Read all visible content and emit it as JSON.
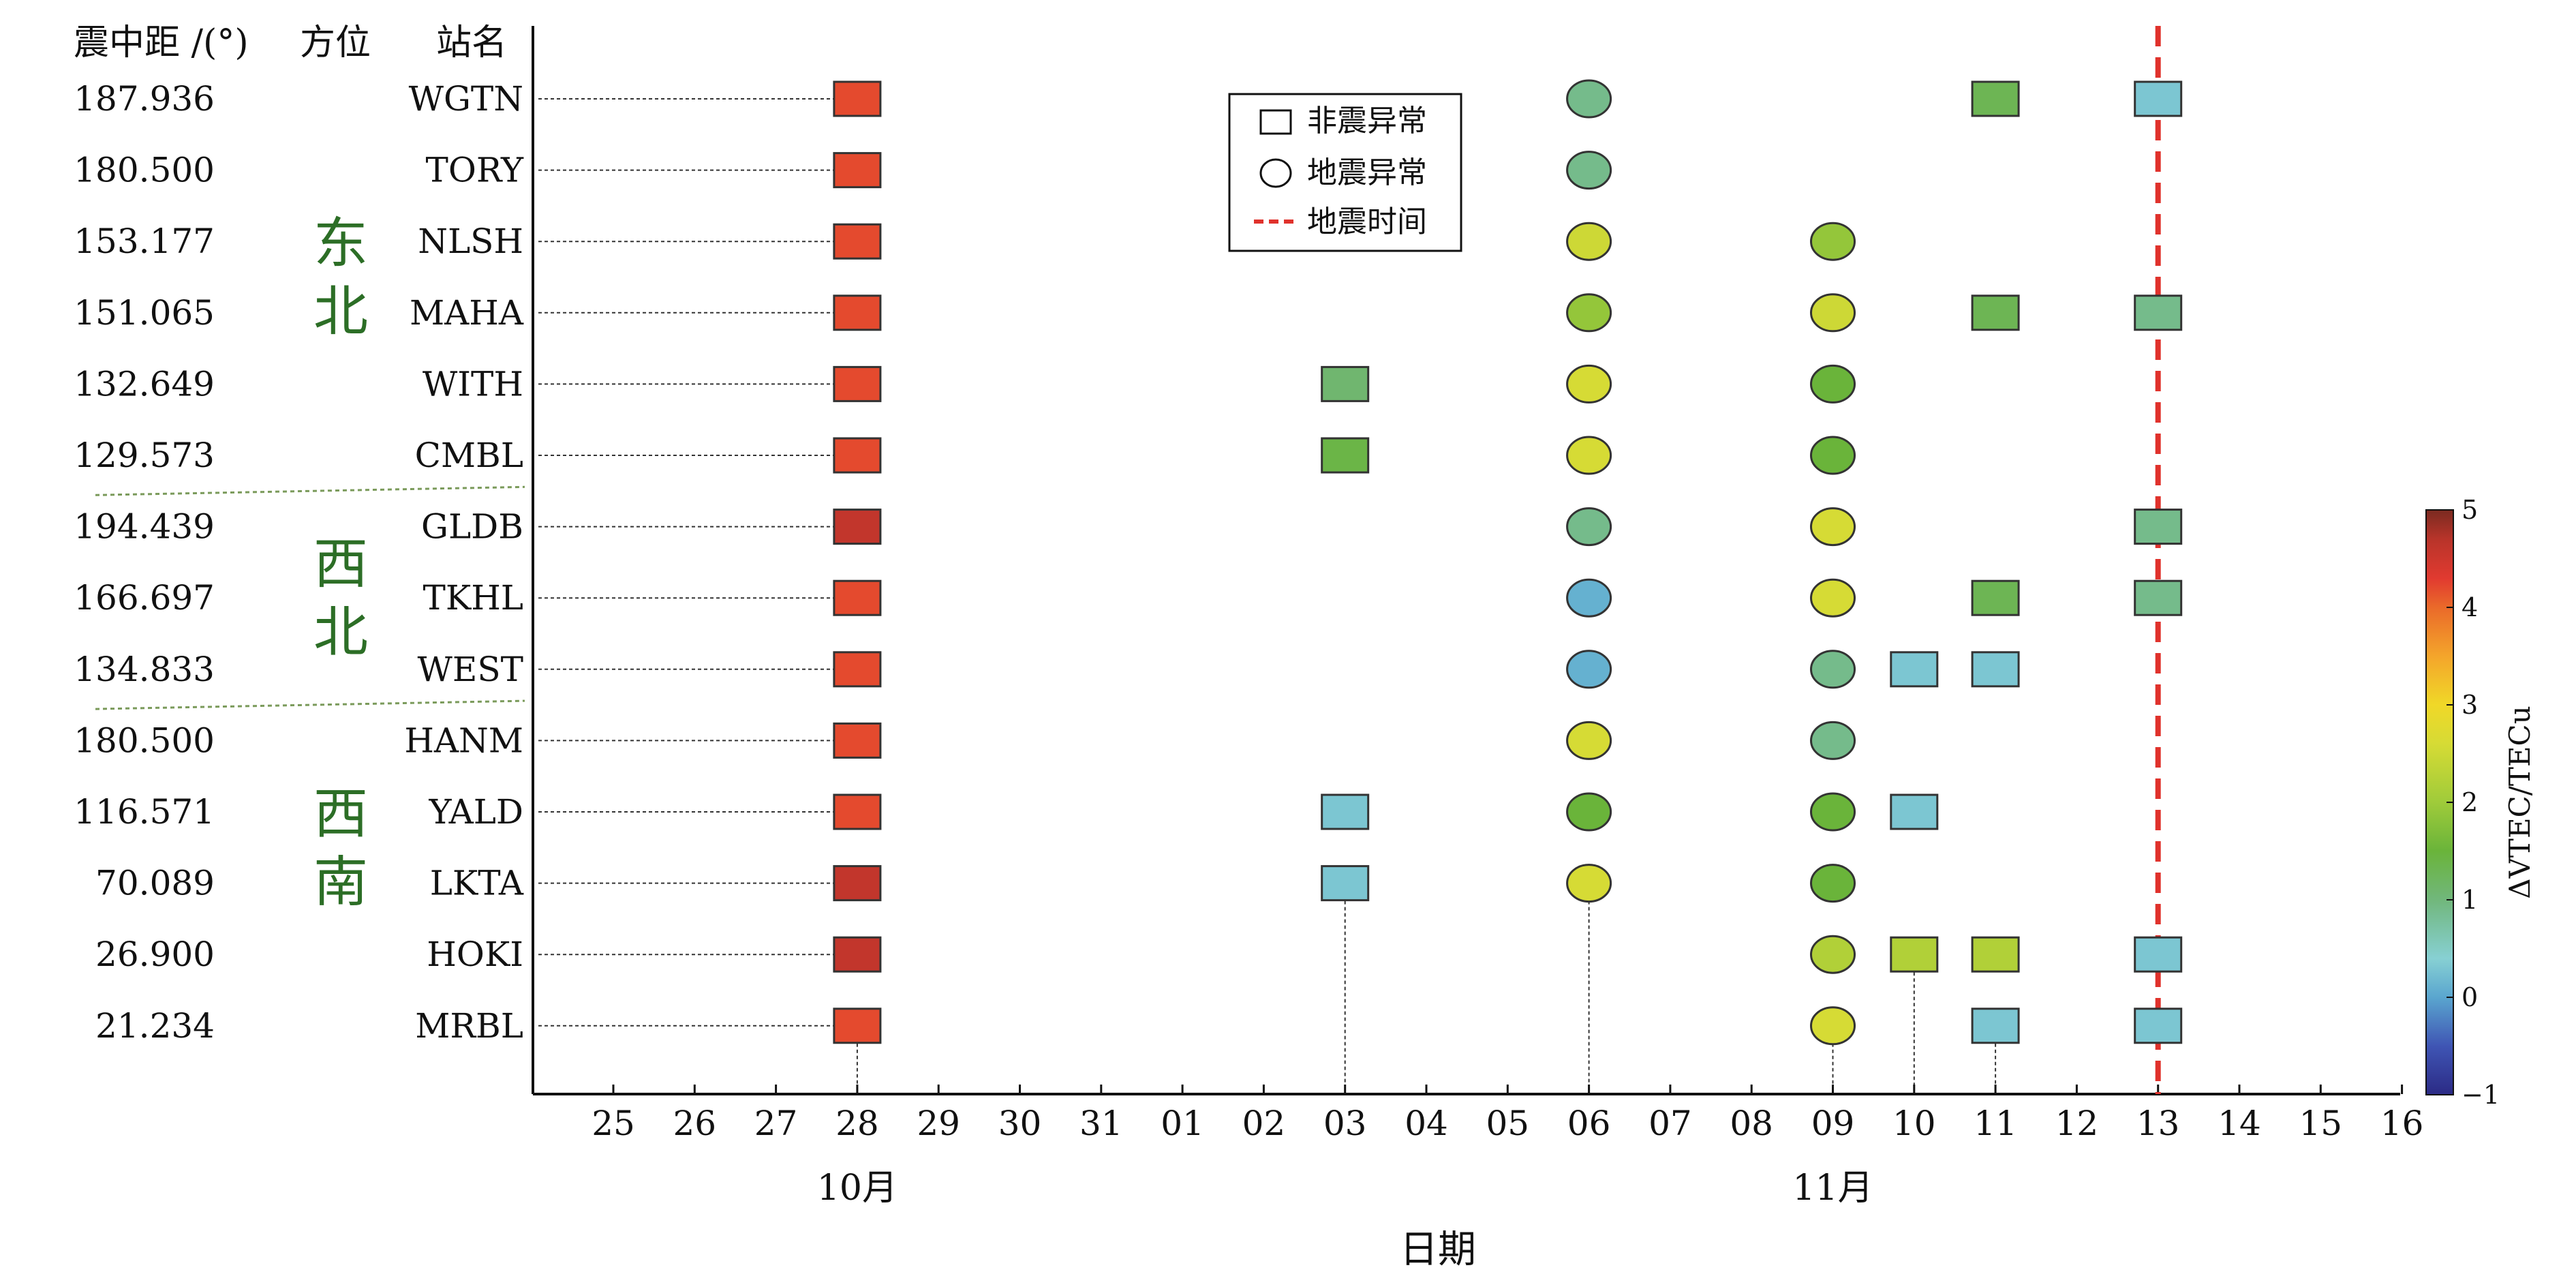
{
  "chart_data": {
    "type": "scatter",
    "header": {
      "distance": "震中距 /(°)",
      "azimuth": "方位",
      "station": "站名"
    },
    "x_ticks": [
      "25",
      "26",
      "27",
      "28",
      "29",
      "30",
      "31",
      "01",
      "02",
      "03",
      "04",
      "05",
      "06",
      "07",
      "08",
      "09",
      "10",
      "11",
      "12",
      "13",
      "14",
      "15",
      "16"
    ],
    "month_labels": [
      {
        "label": "10月",
        "at_tick": 3
      },
      {
        "label": "11月",
        "at_tick": 15
      }
    ],
    "xlabel": "日期",
    "earthquake_tick": 19,
    "stations": [
      {
        "distance": "187.936",
        "name": "WGTN"
      },
      {
        "distance": "180.500",
        "name": "TORY"
      },
      {
        "distance": "153.177",
        "name": "NLSH"
      },
      {
        "distance": "151.065",
        "name": "MAHA"
      },
      {
        "distance": "132.649",
        "name": "WITH"
      },
      {
        "distance": "129.573",
        "name": "CMBL"
      },
      {
        "distance": "194.439",
        "name": "GLDB"
      },
      {
        "distance": "166.697",
        "name": "TKHL"
      },
      {
        "distance": "134.833",
        "name": "WEST"
      },
      {
        "distance": "180.500",
        "name": "HANM"
      },
      {
        "distance": "116.571",
        "name": "YALD"
      },
      {
        "distance": "70.089",
        "name": "LKTA"
      },
      {
        "distance": "26.900",
        "name": "HOKI"
      },
      {
        "distance": "21.234",
        "name": "MRBL"
      }
    ],
    "regions": [
      {
        "label": "东\n北",
        "rows": [
          2,
          3
        ]
      },
      {
        "label": "西\n北",
        "rows": [
          6,
          8
        ]
      },
      {
        "label": "西\n南",
        "rows": [
          10,
          11
        ]
      }
    ],
    "region_separators_after_row": [
      5,
      8
    ],
    "anomalies": [
      {
        "station": "WGTN",
        "tick": 3,
        "shape": "square",
        "value": 4.2
      },
      {
        "station": "WGTN",
        "tick": 12,
        "shape": "circle",
        "value": 0.9
      },
      {
        "station": "WGTN",
        "tick": 17,
        "shape": "square",
        "value": 1.3
      },
      {
        "station": "WGTN",
        "tick": 19,
        "shape": "square",
        "value": 0.3
      },
      {
        "station": "TORY",
        "tick": 3,
        "shape": "square",
        "value": 4.2
      },
      {
        "station": "TORY",
        "tick": 12,
        "shape": "circle",
        "value": 0.9
      },
      {
        "station": "NLSH",
        "tick": 3,
        "shape": "square",
        "value": 4.2
      },
      {
        "station": "NLSH",
        "tick": 12,
        "shape": "circle",
        "value": 2.5
      },
      {
        "station": "NLSH",
        "tick": 15,
        "shape": "circle",
        "value": 1.9
      },
      {
        "station": "MAHA",
        "tick": 3,
        "shape": "square",
        "value": 4.2
      },
      {
        "station": "MAHA",
        "tick": 12,
        "shape": "circle",
        "value": 1.9
      },
      {
        "station": "MAHA",
        "tick": 15,
        "shape": "circle",
        "value": 2.5
      },
      {
        "station": "MAHA",
        "tick": 17,
        "shape": "square",
        "value": 1.3
      },
      {
        "station": "MAHA",
        "tick": 19,
        "shape": "square",
        "value": 0.9
      },
      {
        "station": "WITH",
        "tick": 3,
        "shape": "square",
        "value": 4.2
      },
      {
        "station": "WITH",
        "tick": 9,
        "shape": "square",
        "value": 1.1
      },
      {
        "station": "WITH",
        "tick": 12,
        "shape": "circle",
        "value": 2.6
      },
      {
        "station": "WITH",
        "tick": 15,
        "shape": "circle",
        "value": 1.5
      },
      {
        "station": "CMBL",
        "tick": 3,
        "shape": "square",
        "value": 4.2
      },
      {
        "station": "CMBL",
        "tick": 9,
        "shape": "square",
        "value": 1.4
      },
      {
        "station": "CMBL",
        "tick": 12,
        "shape": "circle",
        "value": 2.6
      },
      {
        "station": "CMBL",
        "tick": 15,
        "shape": "circle",
        "value": 1.5
      },
      {
        "station": "GLDB",
        "tick": 3,
        "shape": "square",
        "value": 4.6
      },
      {
        "station": "GLDB",
        "tick": 12,
        "shape": "circle",
        "value": 0.9
      },
      {
        "station": "GLDB",
        "tick": 15,
        "shape": "circle",
        "value": 2.6
      },
      {
        "station": "GLDB",
        "tick": 19,
        "shape": "square",
        "value": 0.9
      },
      {
        "station": "TKHL",
        "tick": 3,
        "shape": "square",
        "value": 4.2
      },
      {
        "station": "TKHL",
        "tick": 12,
        "shape": "circle",
        "value": 0.1
      },
      {
        "station": "TKHL",
        "tick": 15,
        "shape": "circle",
        "value": 2.6
      },
      {
        "station": "TKHL",
        "tick": 17,
        "shape": "square",
        "value": 1.3
      },
      {
        "station": "TKHL",
        "tick": 19,
        "shape": "square",
        "value": 0.9
      },
      {
        "station": "WEST",
        "tick": 3,
        "shape": "square",
        "value": 4.2
      },
      {
        "station": "WEST",
        "tick": 12,
        "shape": "circle",
        "value": 0.1
      },
      {
        "station": "WEST",
        "tick": 15,
        "shape": "circle",
        "value": 0.9
      },
      {
        "station": "WEST",
        "tick": 16,
        "shape": "square",
        "value": 0.3
      },
      {
        "station": "WEST",
        "tick": 17,
        "shape": "square",
        "value": 0.3
      },
      {
        "station": "HANM",
        "tick": 3,
        "shape": "square",
        "value": 4.2
      },
      {
        "station": "HANM",
        "tick": 12,
        "shape": "circle",
        "value": 2.6
      },
      {
        "station": "HANM",
        "tick": 15,
        "shape": "circle",
        "value": 0.9
      },
      {
        "station": "YALD",
        "tick": 3,
        "shape": "square",
        "value": 4.2
      },
      {
        "station": "YALD",
        "tick": 9,
        "shape": "square",
        "value": 0.3
      },
      {
        "station": "YALD",
        "tick": 12,
        "shape": "circle",
        "value": 1.5
      },
      {
        "station": "YALD",
        "tick": 15,
        "shape": "circle",
        "value": 1.5
      },
      {
        "station": "YALD",
        "tick": 16,
        "shape": "square",
        "value": 0.3
      },
      {
        "station": "LKTA",
        "tick": 3,
        "shape": "square",
        "value": 4.6
      },
      {
        "station": "LKTA",
        "tick": 9,
        "shape": "square",
        "value": 0.3
      },
      {
        "station": "LKTA",
        "tick": 12,
        "shape": "circle",
        "value": 2.6
      },
      {
        "station": "LKTA",
        "tick": 15,
        "shape": "circle",
        "value": 1.5
      },
      {
        "station": "HOKI",
        "tick": 3,
        "shape": "square",
        "value": 4.6
      },
      {
        "station": "HOKI",
        "tick": 15,
        "shape": "circle",
        "value": 2.2
      },
      {
        "station": "HOKI",
        "tick": 16,
        "shape": "square",
        "value": 2.2
      },
      {
        "station": "HOKI",
        "tick": 17,
        "shape": "square",
        "value": 2.2
      },
      {
        "station": "HOKI",
        "tick": 19,
        "shape": "square",
        "value": 0.3
      },
      {
        "station": "MRBL",
        "tick": 3,
        "shape": "square",
        "value": 4.2
      },
      {
        "station": "MRBL",
        "tick": 15,
        "shape": "circle",
        "value": 2.6
      },
      {
        "station": "MRBL",
        "tick": 17,
        "shape": "square",
        "value": 0.3
      },
      {
        "station": "MRBL",
        "tick": 19,
        "shape": "square",
        "value": 0.3
      }
    ],
    "legend": {
      "items": [
        {
          "label": "非震异常",
          "symbol": "square"
        },
        {
          "label": "地震异常",
          "symbol": "circle"
        },
        {
          "label": "地震时间",
          "symbol": "dashed-line"
        }
      ]
    },
    "colorbar": {
      "label": "ΔVTEC/TECu",
      "range": [
        -1,
        5
      ],
      "ticks": [
        -1,
        0,
        1,
        2,
        3,
        4,
        5
      ],
      "stops": [
        {
          "v": -1.0,
          "color": "#2b2a85"
        },
        {
          "v": -0.5,
          "color": "#3f55b4"
        },
        {
          "v": 0.0,
          "color": "#5aa6cf"
        },
        {
          "v": 0.4,
          "color": "#87d0d3"
        },
        {
          "v": 1.0,
          "color": "#71b77c"
        },
        {
          "v": 1.5,
          "color": "#6ab43a"
        },
        {
          "v": 2.0,
          "color": "#9fcb3a"
        },
        {
          "v": 2.6,
          "color": "#d6db35"
        },
        {
          "v": 3.0,
          "color": "#f0d828"
        },
        {
          "v": 3.5,
          "color": "#f4a52b"
        },
        {
          "v": 4.0,
          "color": "#ea6a2a"
        },
        {
          "v": 4.3,
          "color": "#e13a30"
        },
        {
          "v": 4.7,
          "color": "#b8342a"
        },
        {
          "v": 5.0,
          "color": "#7a2a20"
        }
      ]
    },
    "colors": {
      "earthquake_line": "#e0322c",
      "region_text": "#2c6e26",
      "separator": "#7a9a5a"
    }
  }
}
